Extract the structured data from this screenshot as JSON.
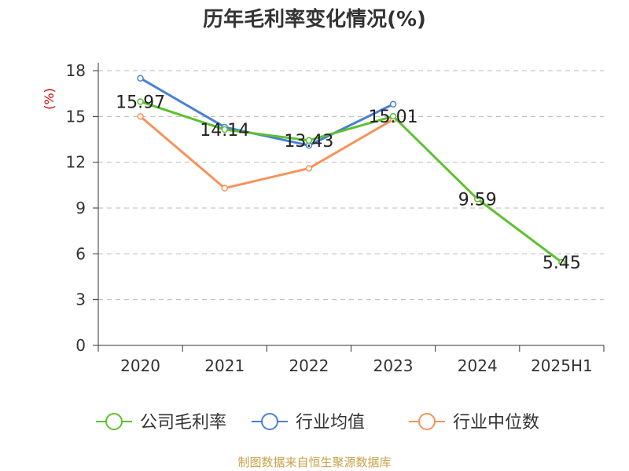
{
  "title": "历年毛利率变化情况(%)",
  "source": "制图数据来自恒生聚源数据库",
  "chart_data": {
    "type": "line",
    "title": "历年毛利率变化情况(%)",
    "ylabel": "(%)",
    "categories": [
      "2020",
      "2021",
      "2022",
      "2023",
      "2024",
      "2025H1"
    ],
    "ylim": [
      0,
      18
    ],
    "yticks": [
      0,
      3,
      6,
      9,
      12,
      15,
      18
    ],
    "grid": true,
    "legend_position": "bottom",
    "series": [
      {
        "name": "公司毛利率",
        "color": "#5cc12e",
        "values": [
          15.97,
          14.14,
          13.43,
          15.01,
          9.59,
          5.45
        ],
        "labels": [
          "15.97",
          "14.14",
          "13.43",
          "15.01",
          "9.59",
          "5.45"
        ]
      },
      {
        "name": "行业均值",
        "color": "#4a7fd9",
        "values": [
          17.5,
          14.3,
          13.1,
          15.8,
          null,
          null
        ]
      },
      {
        "name": "行业中位数",
        "color": "#f5935a",
        "values": [
          15.0,
          10.3,
          11.6,
          14.8,
          null,
          null
        ]
      }
    ],
    "ylabel_color": "#cc0000"
  }
}
